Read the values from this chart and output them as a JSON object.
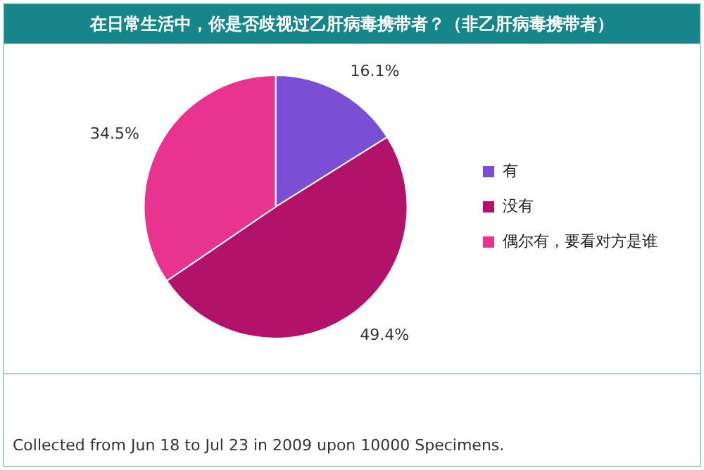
{
  "chart_data": {
    "type": "pie",
    "title": "在日常生活中，你是否歧视过乙肝病毒携带者？（非乙肝病毒携带者）",
    "categories": [
      "有",
      "没有",
      "偶尔有，要看对方是谁"
    ],
    "values": [
      16.1,
      49.4,
      34.5
    ],
    "colors": [
      "#7a4fd6",
      "#b3126a",
      "#e8348f"
    ],
    "value_labels": [
      "16.1%",
      "49.4%",
      "34.5%"
    ],
    "legend": "right",
    "annotations": [
      "Collected from Jun 18 to Jul 23 in 2009 upon 10000 Specimens."
    ]
  }
}
